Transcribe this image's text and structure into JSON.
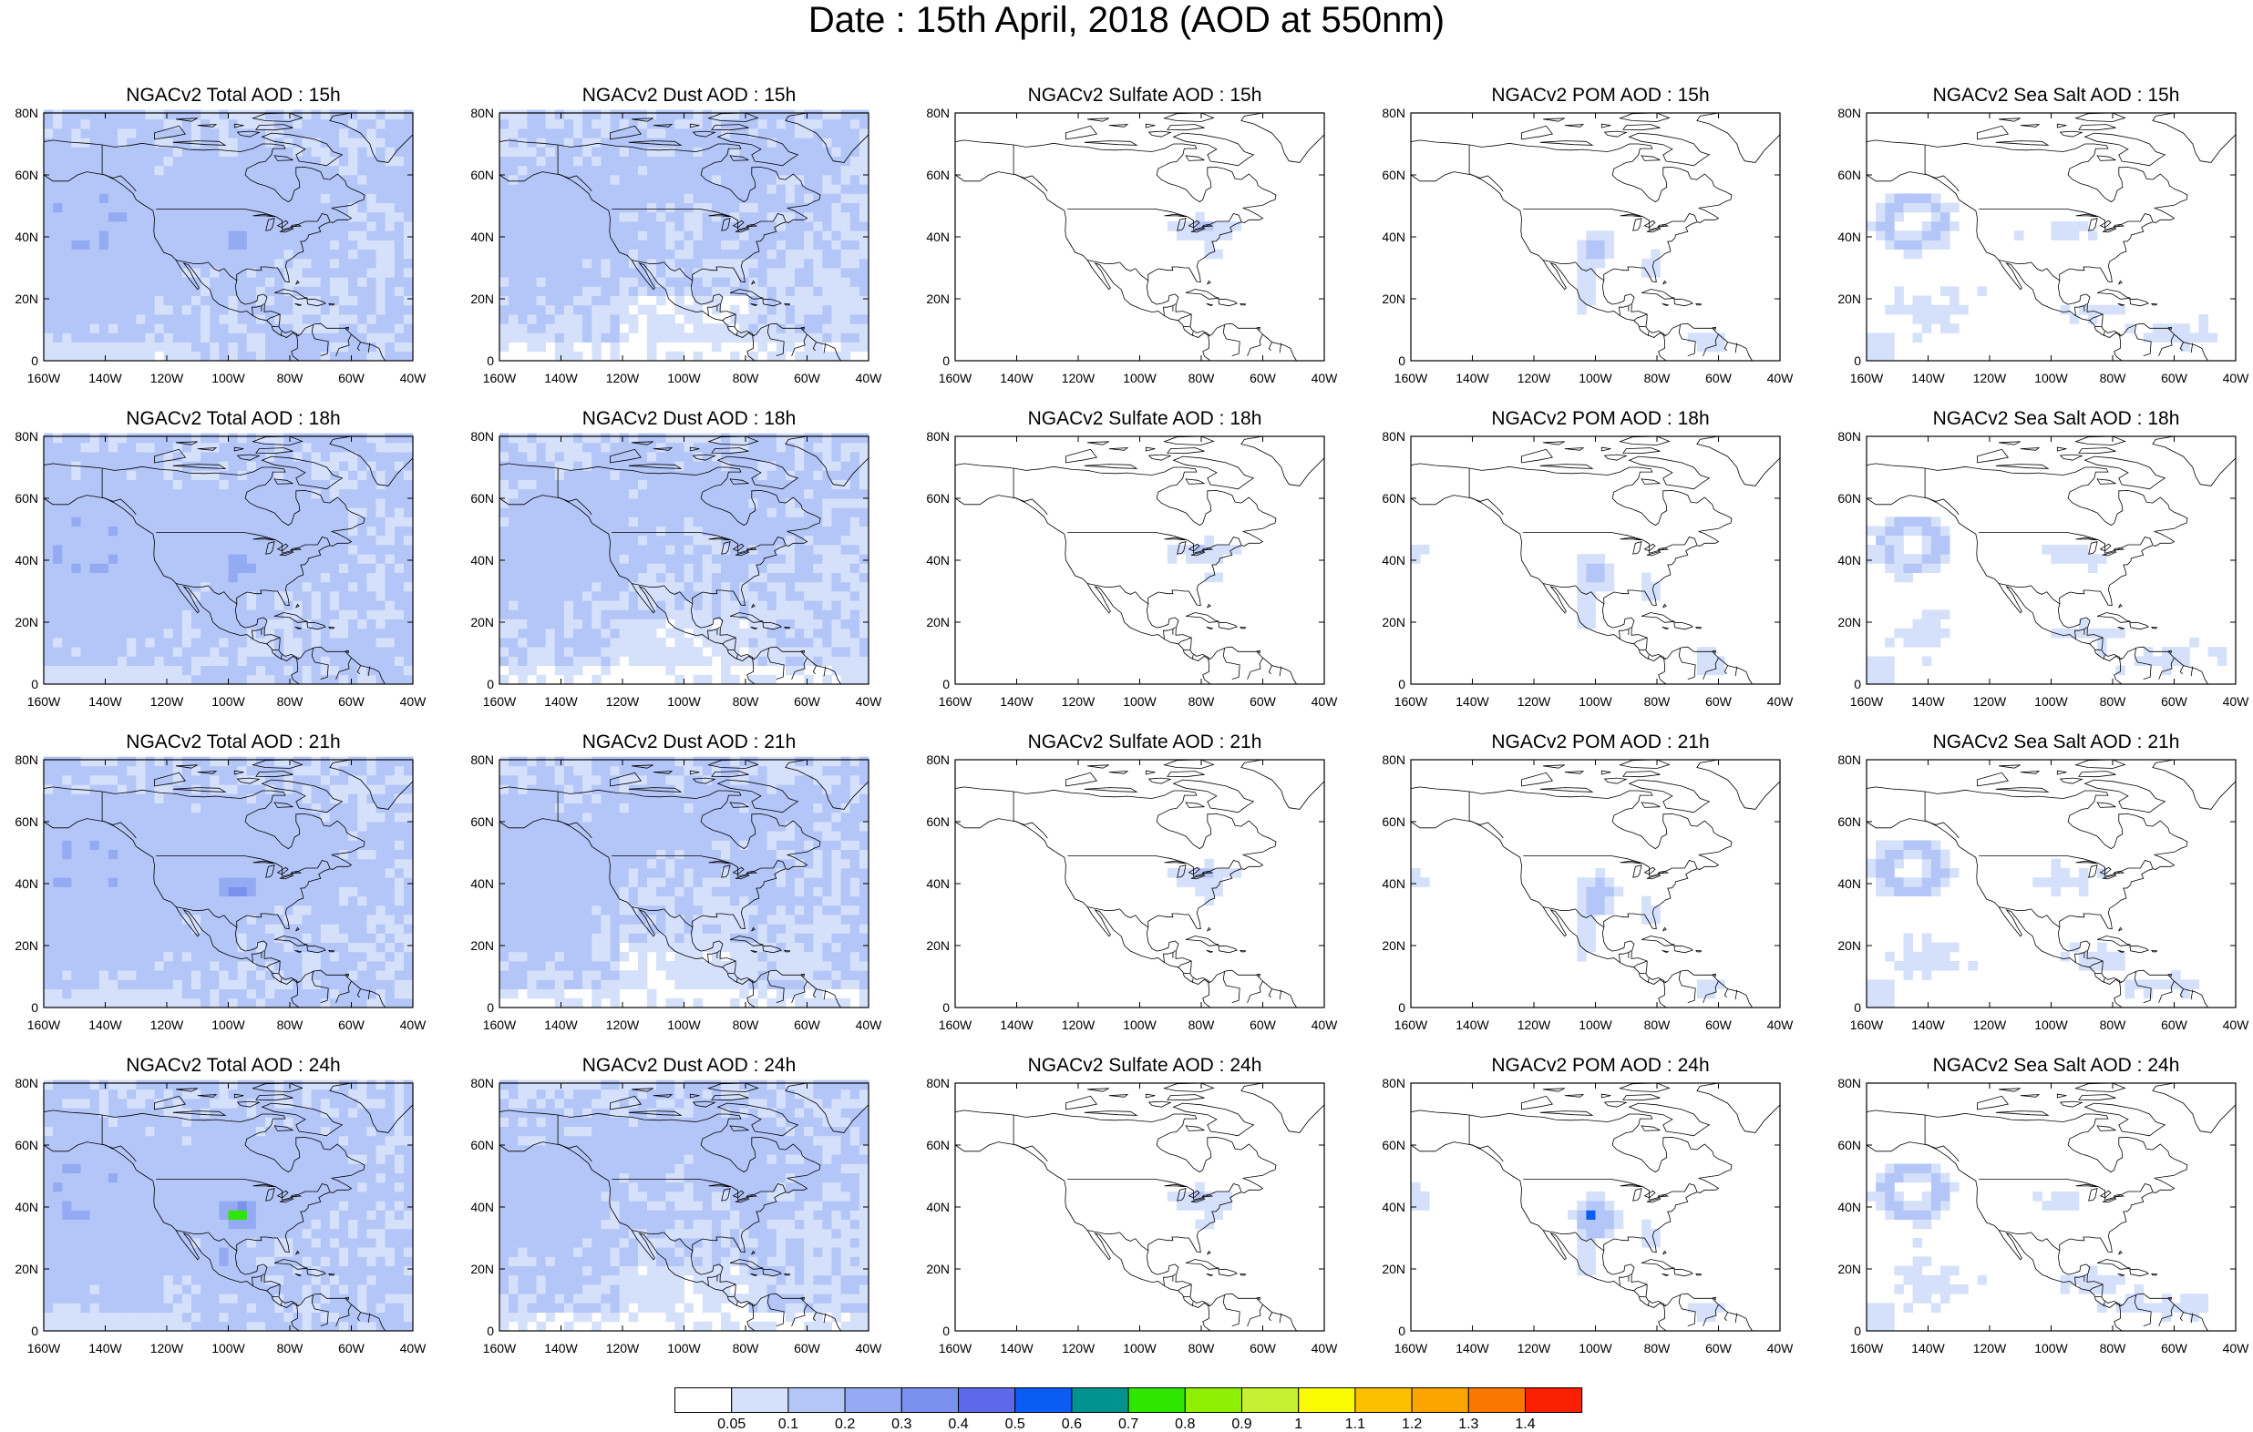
{
  "title": "Date : 15th April, 2018 (AOD at 550nm)",
  "axes": {
    "lon_ticks": [
      "160W",
      "140W",
      "120W",
      "100W",
      "80W",
      "60W",
      "40W"
    ],
    "lat_ticks": [
      "80N",
      "60N",
      "40N",
      "20N",
      "0"
    ],
    "lon_range": [
      -160,
      -40
    ],
    "lat_range": [
      0,
      80
    ]
  },
  "colorbar": {
    "labels": [
      "0.05",
      "0.1",
      "0.2",
      "0.3",
      "0.4",
      "0.5",
      "0.6",
      "0.7",
      "0.8",
      "0.9",
      "1",
      "1.1",
      "1.2",
      "1.3",
      "1.4"
    ],
    "colors": [
      "#ffffff",
      "#d5e0fb",
      "#b4c6f8",
      "#94abf4",
      "#7b91f0",
      "#5d69e8",
      "#0a5cf5",
      "#00928f",
      "#2ee600",
      "#8ef000",
      "#c6f032",
      "#fafa00",
      "#fcc000",
      "#fca500",
      "#fb7800",
      "#f82000"
    ]
  },
  "rows": [
    {
      "time": "15h",
      "panels": [
        "NGACv2 Total AOD : 15h",
        "NGACv2 Dust AOD : 15h",
        "NGACv2 Sulfate AOD : 15h",
        "NGACv2 POM AOD : 15h",
        "NGACv2 Sea Salt AOD : 15h"
      ]
    },
    {
      "time": "18h",
      "panels": [
        "NGACv2 Total AOD : 18h",
        "NGACv2 Dust AOD : 18h",
        "NGACv2 Sulfate AOD : 18h",
        "NGACv2 POM AOD : 18h",
        "NGACv2 Sea Salt AOD : 18h"
      ]
    },
    {
      "time": "21h",
      "panels": [
        "NGACv2 Total AOD : 21h",
        "NGACv2 Dust AOD : 21h",
        "NGACv2 Sulfate AOD : 21h",
        "NGACv2 POM AOD : 21h",
        "NGACv2 Sea Salt AOD : 21h"
      ]
    },
    {
      "time": "24h",
      "panels": [
        "NGACv2 Total AOD : 24h",
        "NGACv2 Dust AOD : 24h",
        "NGACv2 Sulfate AOD : 24h",
        "NGACv2 POM AOD : 24h",
        "NGACv2 Sea Salt  AOD : 24h"
      ]
    }
  ],
  "species": [
    "Total",
    "Dust",
    "Sulfate",
    "POM",
    "Sea Salt"
  ]
}
